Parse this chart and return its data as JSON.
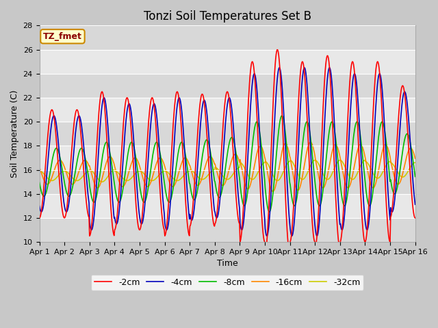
{
  "title": "Tonzi Soil Temperatures Set B",
  "xlabel": "Time",
  "ylabel": "Soil Temperature (C)",
  "ylim": [
    10,
    28
  ],
  "annotation": "TZ_fmet",
  "legend_labels": [
    "-2cm",
    "-4cm",
    "-8cm",
    "-16cm",
    "-32cm"
  ],
  "legend_colors": [
    "#ff0000",
    "#0000bb",
    "#00bb00",
    "#ff8800",
    "#cccc00"
  ],
  "xtick_labels": [
    "Apr 1",
    "Apr 2",
    "Apr 3",
    "Apr 4",
    "Apr 5",
    "Apr 6",
    "Apr 7",
    "Apr 8",
    "Apr 9",
    "Apr 10",
    "Apr 11",
    "Apr 12",
    "Apr 13",
    "Apr 14",
    "Apr 15",
    "Apr 16"
  ],
  "ytick_values": [
    10,
    12,
    14,
    16,
    18,
    20,
    22,
    24,
    26,
    28
  ],
  "fig_bg_color": "#c8c8c8",
  "plot_bg_color": "#e8e8e8",
  "title_fontsize": 12,
  "axis_label_fontsize": 9,
  "tick_fontsize": 8,
  "days": 15,
  "n_per_day": 48,
  "base_2cm": [
    16.5,
    16.5,
    16.5,
    16.5,
    16.5,
    16.5,
    16.8,
    17.0,
    17.5,
    17.5,
    17.5,
    17.5,
    17.5,
    17.5,
    17.5
  ],
  "base_4cm": [
    16.5,
    16.5,
    16.5,
    16.5,
    16.5,
    16.5,
    16.8,
    17.0,
    17.5,
    17.5,
    17.5,
    17.5,
    17.5,
    17.5,
    17.5
  ],
  "base_8cm": [
    15.8,
    15.8,
    15.8,
    15.8,
    15.8,
    15.8,
    16.0,
    16.2,
    16.5,
    16.5,
    16.5,
    16.5,
    16.5,
    16.5,
    16.5
  ],
  "base_16cm": [
    15.8,
    15.8,
    15.8,
    15.8,
    15.8,
    15.8,
    15.9,
    16.0,
    16.2,
    16.2,
    16.3,
    16.3,
    16.3,
    16.3,
    16.3
  ],
  "base_32cm": [
    15.5,
    15.5,
    15.5,
    15.5,
    15.5,
    15.5,
    15.6,
    15.7,
    15.9,
    15.9,
    16.0,
    16.0,
    16.0,
    16.0,
    16.0
  ],
  "amp_2cm": [
    4.5,
    4.5,
    6.0,
    5.5,
    5.5,
    6.0,
    5.5,
    5.5,
    7.5,
    8.5,
    7.5,
    8.0,
    7.5,
    7.5,
    5.5
  ],
  "amp_4cm": [
    4.0,
    4.0,
    5.5,
    5.0,
    5.0,
    5.5,
    5.0,
    5.0,
    6.5,
    7.0,
    7.0,
    7.0,
    6.5,
    6.5,
    5.0
  ],
  "amp_8cm": [
    2.0,
    2.0,
    2.5,
    2.5,
    2.5,
    2.5,
    2.5,
    2.5,
    3.5,
    4.0,
    3.5,
    3.5,
    3.5,
    3.5,
    2.5
  ],
  "amp_16cm": [
    1.0,
    1.0,
    1.3,
    1.2,
    1.2,
    1.2,
    1.2,
    1.3,
    1.8,
    2.0,
    2.0,
    1.8,
    1.8,
    1.8,
    1.5
  ],
  "amp_32cm": [
    0.4,
    0.4,
    0.5,
    0.4,
    0.4,
    0.4,
    0.4,
    0.5,
    0.7,
    0.8,
    0.8,
    0.8,
    0.8,
    0.7,
    0.6
  ],
  "phase_2cm": 0.0,
  "phase_4cm": 0.08,
  "phase_8cm": 0.18,
  "phase_16cm": 0.32,
  "phase_32cm": 0.5,
  "lw": 1.2
}
